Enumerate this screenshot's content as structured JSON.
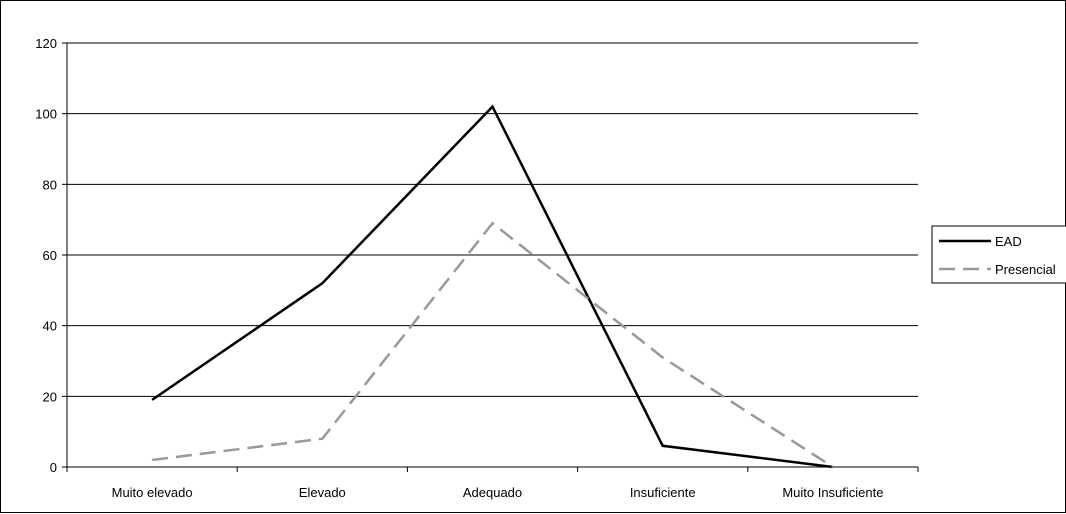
{
  "chart_data": {
    "type": "line",
    "title": "",
    "xlabel": "",
    "ylabel": "",
    "categories": [
      "Muito elevado",
      "Elevado",
      "Adequado",
      "Insuficiente",
      "Muito Insuficiente"
    ],
    "ylim": [
      0,
      120
    ],
    "yticks": [
      0,
      20,
      40,
      60,
      80,
      100,
      120
    ],
    "y_tick_labels": [
      "0",
      "20",
      "40",
      "60",
      "80",
      "100",
      "120"
    ],
    "grid": true,
    "legend_position": "right",
    "series": [
      {
        "name": "EAD",
        "values": [
          19,
          52,
          102,
          6,
          0
        ],
        "color": "#000000",
        "dash": "solid"
      },
      {
        "name": "Presencial",
        "values": [
          2,
          8,
          69,
          31,
          0
        ],
        "color": "#999999",
        "dash": "dashed"
      }
    ]
  }
}
